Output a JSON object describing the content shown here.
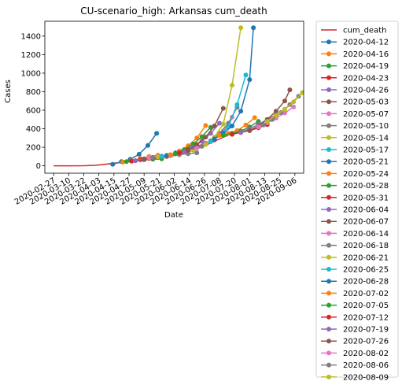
{
  "chart_data": {
    "type": "line",
    "title": "CU-scenario_high: Arkansas cum_death",
    "xlabel": "Date",
    "ylabel": "Cases",
    "xlim": [
      "2020-02-20",
      "2020-09-13"
    ],
    "ylim": [
      -80,
      1560
    ],
    "x_ticks": [
      "2020-02-27",
      "2020-03-10",
      "2020-03-22",
      "2020-04-03",
      "2020-04-15",
      "2020-04-27",
      "2020-05-09",
      "2020-05-21",
      "2020-06-02",
      "2020-06-14",
      "2020-06-26",
      "2020-07-08",
      "2020-07-20",
      "2020-08-01",
      "2020-08-13",
      "2020-08-25",
      "2020-09-06"
    ],
    "y_ticks": [
      0,
      200,
      400,
      600,
      800,
      1000,
      1200,
      1400
    ],
    "grid": false,
    "legend_position": "outside-right",
    "series": [
      {
        "name": "cum_death",
        "color": "#d62728",
        "marker": false,
        "points": [
          [
            "2020-02-27",
            0
          ],
          [
            "2020-03-10",
            0
          ],
          [
            "2020-03-22",
            1
          ],
          [
            "2020-03-31",
            5
          ],
          [
            "2020-04-05",
            12
          ],
          [
            "2020-04-15",
            28
          ],
          [
            "2020-04-27",
            45
          ],
          [
            "2020-05-09",
            60
          ],
          [
            "2020-05-21",
            85
          ],
          [
            "2020-06-02",
            110
          ],
          [
            "2020-06-14",
            155
          ],
          [
            "2020-06-26",
            215
          ],
          [
            "2020-07-08",
            290
          ],
          [
            "2020-07-20",
            360
          ]
        ]
      },
      {
        "name": "2020-04-12",
        "color": "#1f77b4",
        "points": [
          [
            "2020-04-14",
            15
          ],
          [
            "2020-04-21",
            45
          ],
          [
            "2020-04-28",
            70
          ],
          [
            "2020-05-05",
            125
          ],
          [
            "2020-05-12",
            220
          ],
          [
            "2020-05-19",
            350
          ]
        ]
      },
      {
        "name": "2020-04-16",
        "color": "#ff7f0e",
        "points": [
          [
            "2020-04-22",
            40
          ],
          [
            "2020-04-29",
            55
          ],
          [
            "2020-05-06",
            80
          ],
          [
            "2020-05-13",
            100
          ],
          [
            "2020-05-20",
            115
          ]
        ]
      },
      {
        "name": "2020-04-19",
        "color": "#2ca02c",
        "points": [
          [
            "2020-04-25",
            45
          ],
          [
            "2020-05-02",
            55
          ],
          [
            "2020-05-09",
            65
          ],
          [
            "2020-05-16",
            70
          ],
          [
            "2020-05-23",
            75
          ]
        ]
      },
      {
        "name": "2020-04-23",
        "color": "#d62728",
        "points": [
          [
            "2020-04-29",
            50
          ],
          [
            "2020-05-06",
            65
          ],
          [
            "2020-05-13",
            80
          ],
          [
            "2020-05-20",
            90
          ],
          [
            "2020-05-27",
            100
          ]
        ]
      },
      {
        "name": "2020-04-26",
        "color": "#9467bd",
        "points": [
          [
            "2020-05-02",
            55
          ],
          [
            "2020-05-09",
            75
          ],
          [
            "2020-05-16",
            90
          ],
          [
            "2020-05-23",
            105
          ],
          [
            "2020-05-30",
            120
          ]
        ]
      },
      {
        "name": "2020-05-03",
        "color": "#8c564b",
        "points": [
          [
            "2020-05-09",
            70
          ],
          [
            "2020-05-16",
            85
          ],
          [
            "2020-05-23",
            100
          ],
          [
            "2020-05-30",
            115
          ],
          [
            "2020-06-06",
            130
          ]
        ]
      },
      {
        "name": "2020-05-07",
        "color": "#e377c2",
        "points": [
          [
            "2020-05-13",
            85
          ],
          [
            "2020-05-20",
            100
          ],
          [
            "2020-05-27",
            115
          ],
          [
            "2020-06-03",
            135
          ],
          [
            "2020-06-10",
            150
          ]
        ]
      },
      {
        "name": "2020-05-10",
        "color": "#7f7f7f",
        "points": [
          [
            "2020-05-16",
            90
          ],
          [
            "2020-05-23",
            100
          ],
          [
            "2020-05-30",
            110
          ],
          [
            "2020-06-06",
            120
          ],
          [
            "2020-06-13",
            130
          ],
          [
            "2020-06-20",
            140
          ]
        ]
      },
      {
        "name": "2020-05-14",
        "color": "#bcbd22",
        "points": [
          [
            "2020-05-20",
            95
          ],
          [
            "2020-05-27",
            110
          ],
          [
            "2020-06-03",
            130
          ],
          [
            "2020-06-10",
            150
          ],
          [
            "2020-06-17",
            170
          ]
        ]
      },
      {
        "name": "2020-05-17",
        "color": "#17becf",
        "points": [
          [
            "2020-05-23",
            100
          ],
          [
            "2020-05-30",
            120
          ],
          [
            "2020-06-06",
            145
          ],
          [
            "2020-06-13",
            175
          ],
          [
            "2020-06-20",
            210
          ]
        ]
      },
      {
        "name": "2020-05-21",
        "color": "#1f77b4",
        "points": [
          [
            "2020-05-27",
            110
          ],
          [
            "2020-06-03",
            140
          ],
          [
            "2020-06-10",
            175
          ],
          [
            "2020-06-17",
            215
          ],
          [
            "2020-06-24",
            265
          ]
        ]
      },
      {
        "name": "2020-05-24",
        "color": "#ff7f0e",
        "points": [
          [
            "2020-05-30",
            120
          ],
          [
            "2020-06-06",
            160
          ],
          [
            "2020-06-13",
            215
          ],
          [
            "2020-06-20",
            300
          ],
          [
            "2020-06-27",
            435
          ]
        ]
      },
      {
        "name": "2020-05-28",
        "color": "#2ca02c",
        "points": [
          [
            "2020-06-03",
            130
          ],
          [
            "2020-06-10",
            175
          ],
          [
            "2020-06-17",
            235
          ],
          [
            "2020-06-24",
            315
          ],
          [
            "2020-07-01",
            415
          ]
        ]
      },
      {
        "name": "2020-05-31",
        "color": "#d62728",
        "points": [
          [
            "2020-06-06",
            140
          ],
          [
            "2020-06-13",
            175
          ],
          [
            "2020-06-20",
            210
          ],
          [
            "2020-06-27",
            245
          ],
          [
            "2020-07-04",
            280
          ]
        ]
      },
      {
        "name": "2020-06-04",
        "color": "#9467bd",
        "points": [
          [
            "2020-06-10",
            150
          ],
          [
            "2020-06-17",
            200
          ],
          [
            "2020-06-24",
            265
          ],
          [
            "2020-07-01",
            350
          ],
          [
            "2020-07-08",
            460
          ]
        ]
      },
      {
        "name": "2020-06-07",
        "color": "#8c564b",
        "points": [
          [
            "2020-06-13",
            165
          ],
          [
            "2020-06-20",
            230
          ],
          [
            "2020-06-27",
            310
          ],
          [
            "2020-07-04",
            430
          ],
          [
            "2020-07-11",
            620
          ]
        ]
      },
      {
        "name": "2020-06-14",
        "color": "#e377c2",
        "points": [
          [
            "2020-06-20",
            190
          ],
          [
            "2020-06-27",
            240
          ],
          [
            "2020-07-04",
            300
          ],
          [
            "2020-07-11",
            375
          ],
          [
            "2020-07-18",
            525
          ]
        ]
      },
      {
        "name": "2020-06-18",
        "color": "#7f7f7f",
        "points": [
          [
            "2020-06-24",
            210
          ],
          [
            "2020-07-01",
            270
          ],
          [
            "2020-07-08",
            350
          ],
          [
            "2020-07-15",
            460
          ],
          [
            "2020-07-22",
            630
          ]
        ]
      },
      {
        "name": "2020-06-21",
        "color": "#bcbd22",
        "points": [
          [
            "2020-06-27",
            230
          ],
          [
            "2020-07-04",
            310
          ],
          [
            "2020-07-11",
            450
          ],
          [
            "2020-07-18",
            870
          ],
          [
            "2020-07-25",
            1490
          ]
        ]
      },
      {
        "name": "2020-06-25",
        "color": "#17becf",
        "points": [
          [
            "2020-07-01",
            260
          ],
          [
            "2020-07-08",
            330
          ],
          [
            "2020-07-15",
            420
          ],
          [
            "2020-07-22",
            660
          ],
          [
            "2020-07-29",
            980
          ]
        ]
      },
      {
        "name": "2020-06-28",
        "color": "#1f77b4",
        "points": [
          [
            "2020-07-04",
            290
          ],
          [
            "2020-07-11",
            350
          ],
          [
            "2020-07-18",
            430
          ],
          [
            "2020-07-25",
            590
          ],
          [
            "2020-08-01",
            930
          ],
          [
            "2020-08-04",
            1490
          ]
        ]
      },
      {
        "name": "2020-07-02",
        "color": "#ff7f0e",
        "points": [
          [
            "2020-07-08",
            330
          ],
          [
            "2020-07-15",
            350
          ],
          [
            "2020-07-22",
            380
          ],
          [
            "2020-07-29",
            440
          ],
          [
            "2020-08-05",
            520
          ]
        ]
      },
      {
        "name": "2020-07-05",
        "color": "#2ca02c",
        "points": [
          [
            "2020-07-11",
            330
          ],
          [
            "2020-07-18",
            350
          ],
          [
            "2020-07-25",
            375
          ],
          [
            "2020-08-01",
            420
          ],
          [
            "2020-08-08",
            480
          ]
        ]
      },
      {
        "name": "2020-07-12",
        "color": "#d62728",
        "points": [
          [
            "2020-07-18",
            340
          ],
          [
            "2020-07-25",
            360
          ],
          [
            "2020-08-01",
            380
          ],
          [
            "2020-08-08",
            410
          ],
          [
            "2020-08-15",
            445
          ]
        ]
      },
      {
        "name": "2020-07-19",
        "color": "#9467bd",
        "points": [
          [
            "2020-07-25",
            360
          ],
          [
            "2020-08-01",
            400
          ],
          [
            "2020-08-08",
            445
          ],
          [
            "2020-08-15",
            500
          ],
          [
            "2020-08-22",
            550
          ]
        ]
      },
      {
        "name": "2020-07-26",
        "color": "#8c564b",
        "points": [
          [
            "2020-08-01",
            380
          ],
          [
            "2020-08-08",
            430
          ],
          [
            "2020-08-15",
            500
          ],
          [
            "2020-08-22",
            590
          ],
          [
            "2020-08-29",
            700
          ],
          [
            "2020-09-02",
            820
          ]
        ]
      },
      {
        "name": "2020-08-02",
        "color": "#e377c2",
        "points": [
          [
            "2020-08-08",
            420
          ],
          [
            "2020-08-15",
            465
          ],
          [
            "2020-08-22",
            515
          ],
          [
            "2020-08-29",
            570
          ],
          [
            "2020-09-05",
            635
          ]
        ]
      },
      {
        "name": "2020-08-06",
        "color": "#7f7f7f",
        "points": [
          [
            "2020-08-12",
            440
          ],
          [
            "2020-08-19",
            500
          ],
          [
            "2020-08-26",
            575
          ],
          [
            "2020-09-02",
            660
          ],
          [
            "2020-09-09",
            750
          ]
        ]
      },
      {
        "name": "2020-08-09",
        "color": "#bcbd22",
        "points": [
          [
            "2020-08-15",
            480
          ],
          [
            "2020-08-22",
            545
          ],
          [
            "2020-08-29",
            610
          ],
          [
            "2020-09-05",
            690
          ],
          [
            "2020-09-12",
            790
          ],
          [
            "2020-09-16",
            895
          ]
        ]
      }
    ]
  }
}
